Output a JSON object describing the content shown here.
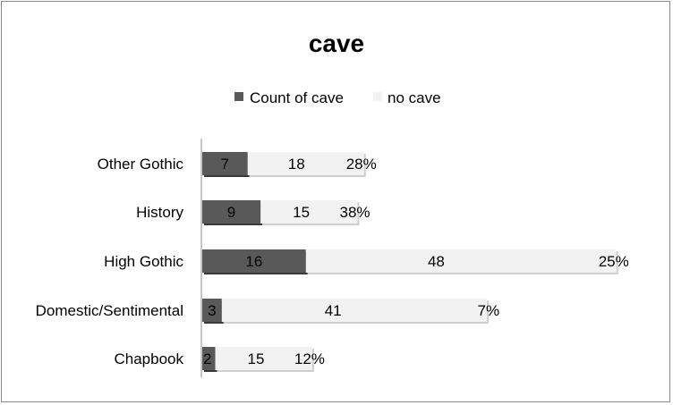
{
  "chart_data": {
    "type": "bar",
    "orientation": "horizontal",
    "stacked": true,
    "title": "cave",
    "xlabel": "",
    "ylabel": "",
    "legend_position": "top",
    "grid": false,
    "categories": [
      "Other Gothic",
      "History",
      "High Gothic",
      "Domestic/Sentimental",
      "Chapbook"
    ],
    "series": [
      {
        "name": "Count of cave",
        "color": "#595959",
        "values": [
          7,
          9,
          16,
          3,
          2
        ]
      },
      {
        "name": "no cave",
        "color": "#f2f2f2",
        "values": [
          18,
          15,
          48,
          41,
          15
        ]
      }
    ],
    "percent_labels": [
      "28%",
      "38%",
      "25%",
      "7%",
      "12%"
    ],
    "xlim": [
      0,
      64
    ]
  }
}
